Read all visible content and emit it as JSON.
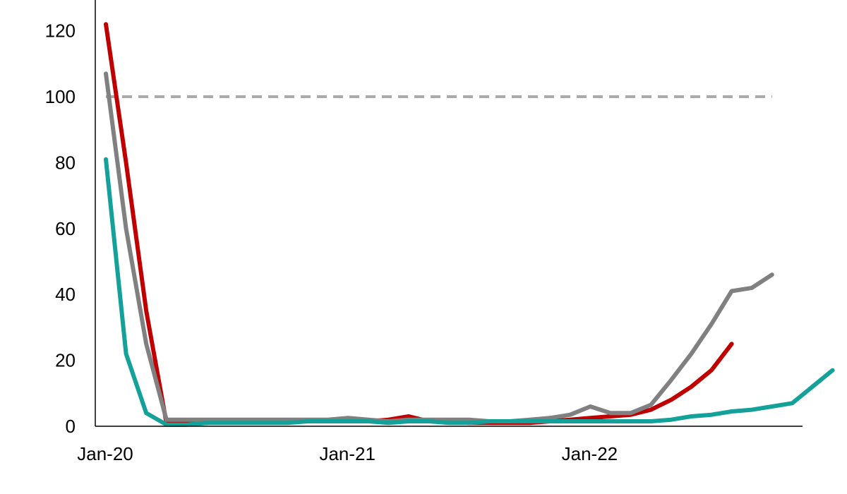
{
  "chart_data": {
    "type": "line",
    "title": "",
    "xlabel": "",
    "ylabel": "",
    "ylim": [
      0,
      130
    ],
    "yticks": [
      0,
      20,
      40,
      60,
      80,
      100,
      120
    ],
    "ytick_labels": [
      "0",
      "20",
      "40",
      "60",
      "80",
      "100",
      "120"
    ],
    "xticks": [
      {
        "label": "Jan-20",
        "index": 0
      },
      {
        "label": "Jan-21",
        "index": 12
      },
      {
        "label": "Jan-22",
        "index": 24
      }
    ],
    "grid": false,
    "legend": "none",
    "reference_line": {
      "value": 100,
      "x_start": 0,
      "x_end": 33,
      "color": "#aaaaaa",
      "style": "dashed"
    },
    "series": [
      {
        "color": "#c00000",
        "values": [
          122,
          80,
          35,
          1,
          1,
          1,
          1.5,
          1.5,
          1.5,
          1.5,
          1.5,
          1.5,
          1.5,
          1.5,
          2,
          3,
          1.5,
          1.5,
          1,
          1,
          1,
          1,
          1.5,
          2,
          2.5,
          3,
          3.5,
          5,
          8,
          12,
          17,
          25
        ]
      },
      {
        "color": "#808080",
        "values": [
          107,
          60,
          25,
          2,
          2,
          2,
          2,
          2,
          2,
          2,
          2,
          2,
          2.5,
          2,
          1.5,
          2,
          2,
          2,
          2,
          1.5,
          1.5,
          2,
          2.5,
          3.5,
          6,
          4,
          4,
          6.5,
          14,
          22,
          31,
          41,
          42,
          46
        ]
      },
      {
        "color": "#13a19a",
        "values": [
          81,
          22,
          4,
          0.5,
          0.5,
          1,
          1,
          1,
          1,
          1,
          1.5,
          1.5,
          1.5,
          1.5,
          1,
          1.5,
          1.5,
          1,
          1,
          1.5,
          1.5,
          1.5,
          1.5,
          1.5,
          1.5,
          1.5,
          1.5,
          1.5,
          2,
          3,
          3.5,
          4.5,
          5,
          6,
          7,
          12,
          17
        ]
      }
    ]
  }
}
